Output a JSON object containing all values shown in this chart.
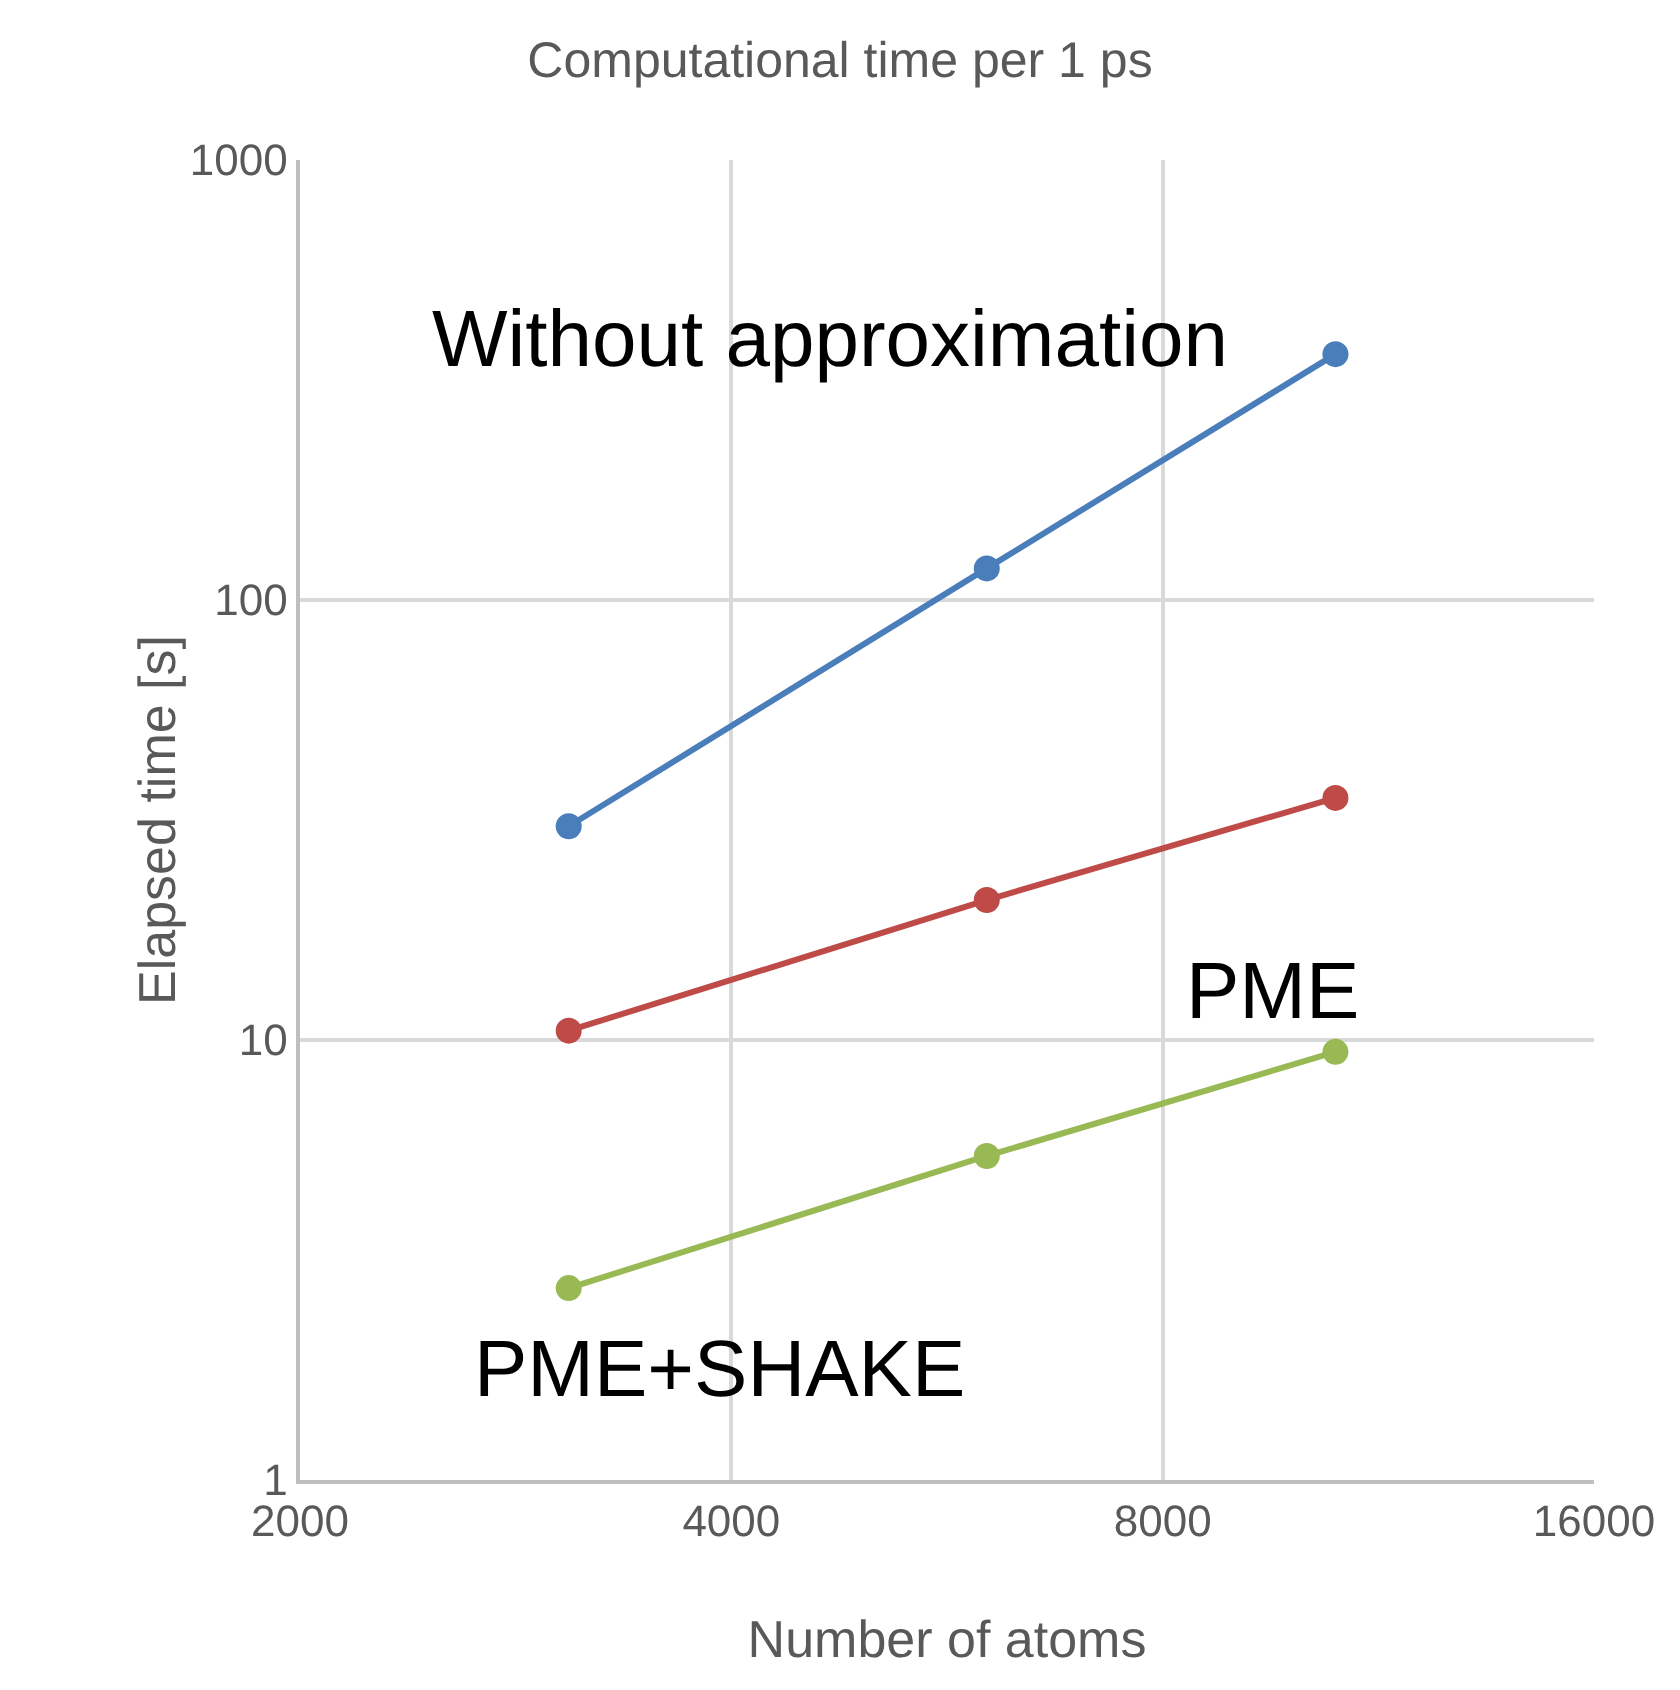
{
  "chart_data": {
    "type": "line",
    "title": "Computational time per 1 ps",
    "xlabel": "Number of atoms",
    "ylabel": "Elapsed time [s]",
    "x": [
      3080,
      6030,
      10560
    ],
    "series": [
      {
        "color": "#4a7ebb",
        "values": [
          30.6,
          118,
          362
        ]
      },
      {
        "color": "#be4b48",
        "values": [
          10.5,
          20.8,
          35.5
        ]
      },
      {
        "color": "#98b954",
        "values": [
          2.73,
          5.45,
          9.4
        ]
      }
    ],
    "annotations": [
      "Without approximation",
      "PME",
      "PME+SHAKE"
    ],
    "log": "xy",
    "xlim": [
      2000,
      16000
    ],
    "xticks": [
      2000,
      4000,
      8000,
      16000
    ],
    "ylim": [
      1,
      1000
    ],
    "yticks": [
      1,
      10,
      100,
      1000
    ],
    "grid": true,
    "marker": "circle",
    "line_style": "solid"
  }
}
